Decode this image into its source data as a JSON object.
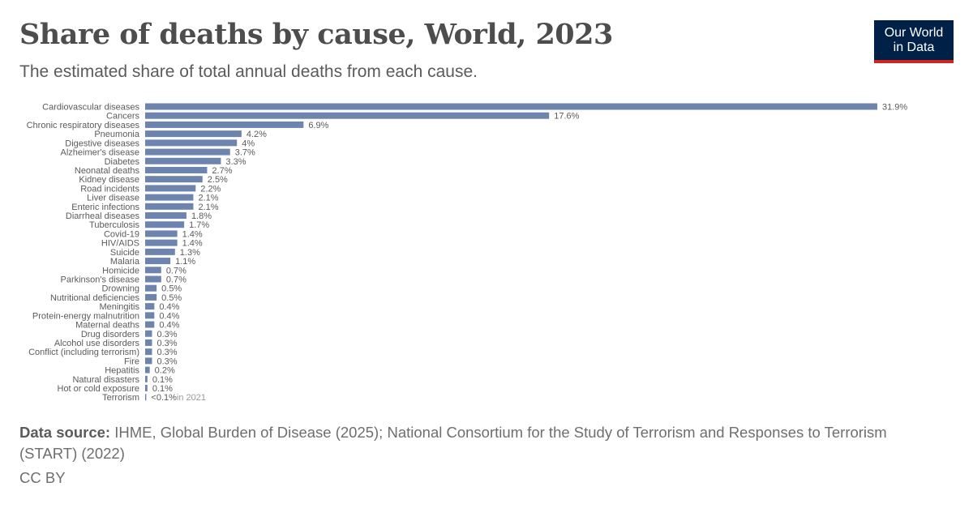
{
  "header": {
    "title": "Share of deaths by cause, World, 2023",
    "subtitle": "The estimated share of total annual deaths from each cause."
  },
  "logo": {
    "line1": "Our World",
    "line2": "in Data"
  },
  "footer": {
    "source_label": "Data source:",
    "source_text": "IHME, Global Burden of Disease (2025); National Consortium for the Study of Terrorism and Responses to Terrorism (START) (2022)",
    "license": "CC BY"
  },
  "colors": {
    "bar": "#6d84ae",
    "logo_bg": "#002147",
    "logo_accent": "#ce261e"
  },
  "chart_data": {
    "type": "bar",
    "orientation": "horizontal",
    "unit": "%",
    "categories": [
      "Cardiovascular diseases",
      "Cancers",
      "Chronic respiratory diseases",
      "Pneumonia",
      "Digestive diseases",
      "Alzheimer's disease",
      "Diabetes",
      "Neonatal deaths",
      "Kidney disease",
      "Road incidents",
      "Liver disease",
      "Enteric infections",
      "Diarrheal diseases",
      "Tuberculosis",
      "Covid-19",
      "HIV/AIDS",
      "Suicide",
      "Malaria",
      "Homicide",
      "Parkinson's disease",
      "Drowning",
      "Nutritional deficiencies",
      "Meningitis",
      "Protein-energy malnutrition",
      "Maternal deaths",
      "Drug disorders",
      "Alcohol use disorders",
      "Conflict (including terrorism)",
      "Fire",
      "Hepatitis",
      "Natural disasters",
      "Hot or cold exposure",
      "Terrorism"
    ],
    "values": [
      31.9,
      17.6,
      6.9,
      4.2,
      4,
      3.7,
      3.3,
      2.7,
      2.5,
      2.2,
      2.1,
      2.1,
      1.8,
      1.7,
      1.4,
      1.4,
      1.3,
      1.1,
      0.7,
      0.7,
      0.5,
      0.5,
      0.4,
      0.4,
      0.4,
      0.3,
      0.3,
      0.3,
      0.3,
      0.2,
      0.1,
      0.1,
      0.05
    ],
    "labels": [
      "31.9%",
      "17.6%",
      "6.9%",
      "4.2%",
      "4%",
      "3.7%",
      "3.3%",
      "2.7%",
      "2.5%",
      "2.2%",
      "2.1%",
      "2.1%",
      "1.8%",
      "1.7%",
      "1.4%",
      "1.4%",
      "1.3%",
      "1.1%",
      "0.7%",
      "0.7%",
      "0.5%",
      "0.5%",
      "0.4%",
      "0.4%",
      "0.4%",
      "0.3%",
      "0.3%",
      "0.3%",
      "0.3%",
      "0.2%",
      "0.1%",
      "0.1%",
      "<0.1%"
    ],
    "notes": [
      "",
      "",
      "",
      "",
      "",
      "",
      "",
      "",
      "",
      "",
      "",
      "",
      "",
      "",
      "",
      "",
      "",
      "",
      "",
      "",
      "",
      "",
      "",
      "",
      "",
      "",
      "",
      "",
      "",
      "",
      "",
      "",
      "in 2021"
    ],
    "xlim": [
      0,
      31.9
    ],
    "grid": false,
    "legend": "none"
  }
}
